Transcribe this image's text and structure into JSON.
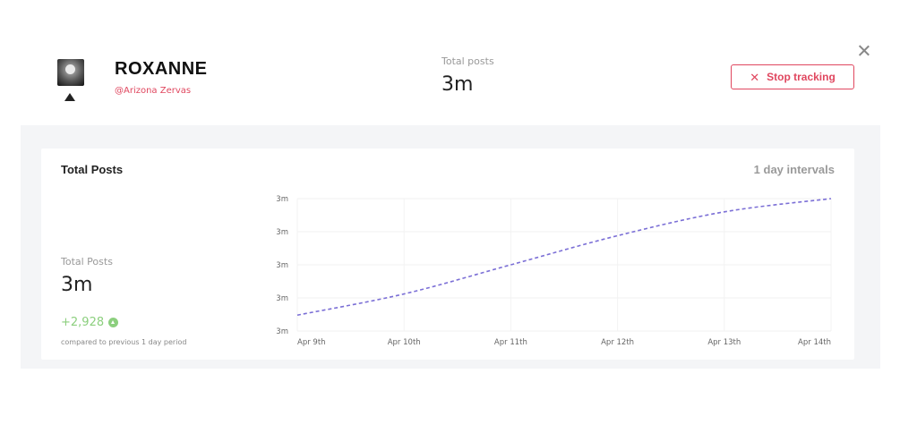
{
  "profile": {
    "name": "ROXANNE",
    "handle": "@Arizona Zervas"
  },
  "header_stat": {
    "label": "Total posts",
    "value": "3m"
  },
  "actions": {
    "stop_label": "Stop tracking",
    "stop_icon": "x-icon",
    "close_icon": "close-icon"
  },
  "card": {
    "title": "Total Posts",
    "interval": "1 day intervals",
    "stat_label": "Total Posts",
    "stat_value": "3m",
    "change": "+2,928",
    "change_icon": "up-arrow-icon",
    "compare_text": "compared to previous 1 day period"
  },
  "colors": {
    "accent_red": "#e0475f",
    "positive_green": "#8ccf7e",
    "line_purple": "#7b6fd6"
  },
  "chart_data": {
    "type": "line",
    "categories": [
      "Apr 9th",
      "Apr 10th",
      "Apr 11th",
      "Apr 12th",
      "Apr 13th",
      "Apr 14th"
    ],
    "y_tick_labels": [
      "3m",
      "3m",
      "3m",
      "3m",
      "3m"
    ],
    "series": [
      {
        "values": [
          0.12,
          0.28,
          0.5,
          0.72,
          0.9,
          1.0
        ]
      }
    ],
    "ylim": [
      0,
      1
    ],
    "line_style": "dashed",
    "grid": true
  }
}
